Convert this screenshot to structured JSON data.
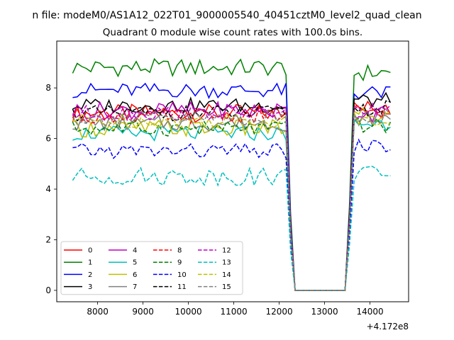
{
  "figure": {
    "suptitle": "n file: modeM0/AS1A12_022T01_9000005540_40451cztM0_level2_quad_clean",
    "offset_label": "+4.172e8"
  },
  "chart_data": {
    "type": "line",
    "title": "Quadrant 0 module wise count rates with 100.0s bins.",
    "xlabel": "",
    "ylabel": "",
    "x_offset": 417200000,
    "xlim": [
      7100,
      14850
    ],
    "ylim": [
      -0.45,
      9.85
    ],
    "xticks": [
      8000,
      9000,
      10000,
      11000,
      12000,
      13000,
      14000
    ],
    "yticks": [
      0,
      2,
      4,
      6,
      8
    ],
    "grid": false,
    "legend_position": "lower-left",
    "legend_columns": 4,
    "x_segments": [
      {
        "start": 7450,
        "end": 12250,
        "step": 100
      },
      {
        "start": 12350,
        "end": 13450,
        "step": 1100
      },
      {
        "start": 13550,
        "end": 14450,
        "step": 100
      }
    ],
    "series": [
      {
        "name": "0",
        "color": "#ff0000",
        "dash": "solid",
        "level": 7.0,
        "amp": 0.35,
        "post": 7.2
      },
      {
        "name": "1",
        "color": "#008000",
        "dash": "solid",
        "level": 8.8,
        "amp": 0.35,
        "post": 8.6
      },
      {
        "name": "2",
        "color": "#0000ff",
        "dash": "solid",
        "level": 7.9,
        "amp": 0.3,
        "post": 7.8
      },
      {
        "name": "3",
        "color": "#000000",
        "dash": "solid",
        "level": 7.3,
        "amp": 0.3,
        "post": 7.5
      },
      {
        "name": "4",
        "color": "#bf00bf",
        "dash": "solid",
        "level": 7.1,
        "amp": 0.35,
        "post": 7.0
      },
      {
        "name": "5",
        "color": "#00bfbf",
        "dash": "solid",
        "level": 6.2,
        "amp": 0.3,
        "post": 6.6
      },
      {
        "name": "6",
        "color": "#bfbf00",
        "dash": "solid",
        "level": 6.4,
        "amp": 0.35,
        "post": 6.9
      },
      {
        "name": "7",
        "color": "#808080",
        "dash": "solid",
        "level": 6.6,
        "amp": 0.3,
        "post": 6.8
      },
      {
        "name": "8",
        "color": "#ff0000",
        "dash": "dashed",
        "level": 6.9,
        "amp": 0.3,
        "post": 7.1
      },
      {
        "name": "9",
        "color": "#008000",
        "dash": "dashed",
        "level": 6.4,
        "amp": 0.3,
        "post": 6.5
      },
      {
        "name": "10",
        "color": "#0000ff",
        "dash": "dashed",
        "level": 5.5,
        "amp": 0.3,
        "post": 5.7
      },
      {
        "name": "11",
        "color": "#000000",
        "dash": "dashed",
        "level": 7.0,
        "amp": 0.3,
        "post": 7.2
      },
      {
        "name": "12",
        "color": "#bf00bf",
        "dash": "dashed",
        "level": 7.0,
        "amp": 0.3,
        "post": 7.1
      },
      {
        "name": "13",
        "color": "#00bfbf",
        "dash": "dashed",
        "level": 4.5,
        "amp": 0.35,
        "post": 4.6
      },
      {
        "name": "14",
        "color": "#bfbf00",
        "dash": "dashed",
        "level": 6.7,
        "amp": 0.3,
        "post": 6.8
      },
      {
        "name": "15",
        "color": "#808080",
        "dash": "dashed",
        "level": 6.8,
        "amp": 0.3,
        "post": 6.9
      }
    ]
  }
}
